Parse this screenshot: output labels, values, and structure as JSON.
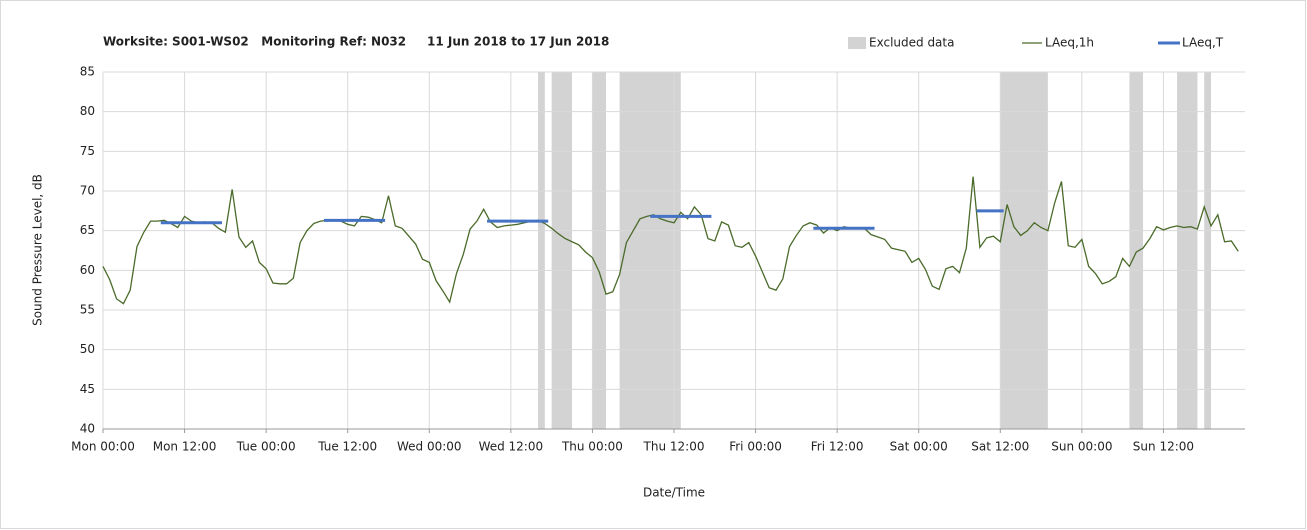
{
  "chart_data": {
    "type": "line",
    "title": "Worksite: S001-WS02   Monitoring Ref: N032     11 Jun 2018 to 17 Jun 2018",
    "x_label": "Date/Time",
    "y_label": "Sound Pressure Level, dB",
    "xlim": [
      0,
      168
    ],
    "ylim": [
      40,
      85
    ],
    "yticks": [
      40,
      45,
      50,
      55,
      60,
      65,
      70,
      75,
      80,
      85
    ],
    "xticks": [
      {
        "value": 0,
        "label": "Mon 00:00"
      },
      {
        "value": 12,
        "label": "Mon 12:00"
      },
      {
        "value": 24,
        "label": "Tue 00:00"
      },
      {
        "value": 36,
        "label": "Tue 12:00"
      },
      {
        "value": 48,
        "label": "Wed 00:00"
      },
      {
        "value": 60,
        "label": "Wed 12:00"
      },
      {
        "value": 72,
        "label": "Thu 00:00"
      },
      {
        "value": 84,
        "label": "Thu 12:00"
      },
      {
        "value": 96,
        "label": "Fri 00:00"
      },
      {
        "value": 108,
        "label": "Fri 12:00"
      },
      {
        "value": 120,
        "label": "Sat 00:00"
      },
      {
        "value": 132,
        "label": "Sat 12:00"
      },
      {
        "value": 144,
        "label": "Sun 00:00"
      },
      {
        "value": 156,
        "label": "Sun 12:00"
      }
    ],
    "grid": true,
    "legend": "top-right",
    "excluded": {
      "name": "Excluded data",
      "color": "#d3d3d3",
      "ranges": [
        [
          64,
          65
        ],
        [
          66,
          69
        ],
        [
          72,
          74
        ],
        [
          76,
          85
        ],
        [
          132,
          139
        ],
        [
          151,
          153
        ],
        [
          158,
          161
        ],
        [
          162,
          163
        ]
      ]
    },
    "series": [
      {
        "name": "LAeq,1h",
        "color": "#4a6b2a",
        "x": [
          0,
          1,
          2,
          3,
          4,
          5,
          6,
          7,
          8,
          9,
          10,
          11,
          12,
          13,
          14,
          15,
          16,
          17,
          18,
          19,
          20,
          21,
          22,
          23,
          24,
          25,
          26,
          27,
          28,
          29,
          30,
          31,
          32,
          33,
          34,
          35,
          36,
          37,
          38,
          39,
          40,
          41,
          42,
          43,
          44,
          45,
          46,
          47,
          48,
          49,
          50,
          51,
          52,
          53,
          54,
          55,
          56,
          57,
          58,
          59,
          60,
          61,
          62,
          63,
          64,
          65,
          66,
          67,
          68,
          69,
          70,
          71,
          72,
          73,
          74,
          75,
          76,
          77,
          78,
          79,
          80,
          81,
          82,
          83,
          84,
          85,
          86,
          87,
          88,
          89,
          90,
          91,
          92,
          93,
          94,
          95,
          96,
          97,
          98,
          99,
          100,
          101,
          102,
          103,
          104,
          105,
          106,
          107,
          108,
          109,
          110,
          111,
          112,
          113,
          114,
          115,
          116,
          117,
          118,
          119,
          120,
          121,
          122,
          123,
          124,
          125,
          126,
          127,
          128,
          129,
          130,
          131,
          132,
          133,
          134,
          135,
          136,
          137,
          138,
          139,
          140,
          141,
          142,
          143,
          144,
          145,
          146,
          147,
          148,
          149,
          150,
          151,
          152,
          153,
          154,
          155,
          156,
          157,
          158,
          159,
          160,
          161,
          162,
          163,
          164,
          165,
          166,
          167
        ],
        "values": [
          60.5,
          58.8,
          56.4,
          55.8,
          57.5,
          63,
          64.8,
          66.2,
          66.2,
          66.3,
          65.9,
          65.4,
          66.8,
          66.2,
          66,
          66.1,
          66,
          65.3,
          64.8,
          70.2,
          64.2,
          62.9,
          63.7,
          61,
          60.2,
          58.4,
          58.3,
          58.3,
          59,
          63.5,
          65,
          65.9,
          66.2,
          66.3,
          66.3,
          66.2,
          65.8,
          65.6,
          66.8,
          66.7,
          66.4,
          66,
          69.4,
          65.6,
          65.3,
          64.3,
          63.3,
          61.4,
          61,
          58.7,
          57.4,
          56,
          59.6,
          62,
          65.2,
          66.2,
          67.7,
          66.1,
          65.4,
          65.6,
          65.7,
          65.8,
          66,
          66.2,
          66.3,
          65.9,
          65.3,
          64.6,
          64,
          63.6,
          63.2,
          62.3,
          61.6,
          59.8,
          57,
          57.3,
          59.5,
          63.5,
          65,
          66.5,
          66.8,
          67,
          66.5,
          66.2,
          66,
          67.3,
          66.5,
          68,
          67,
          64,
          63.7,
          66.1,
          65.7,
          63.1,
          62.9,
          63.5,
          61.8,
          59.8,
          57.8,
          57.5,
          58.9,
          63,
          64.4,
          65.6,
          66,
          65.7,
          64.7,
          65.4,
          65,
          65.5,
          65.3,
          65.3,
          65.3,
          64.5,
          64.2,
          63.9,
          62.8,
          62.6,
          62.4,
          61,
          61.5,
          60.1,
          58,
          57.6,
          60.2,
          60.5,
          59.7,
          62.8,
          71.8,
          62.9,
          64.1,
          64.3,
          63.6,
          68.3,
          65.5,
          64.4,
          65,
          66,
          65.4,
          65,
          68.5,
          71.2,
          63.1,
          62.9,
          63.9,
          60.5,
          59.6,
          58.3,
          58.6,
          59.2,
          61.5,
          60.5,
          62.3,
          62.8,
          64,
          65.5,
          65.1,
          65.4,
          65.6,
          65.4,
          65.5,
          65.2,
          68,
          65.6,
          67,
          63.6,
          63.7,
          62.4
        ]
      },
      {
        "name": "LAeq,T",
        "color": "#4472c4",
        "segments": [
          {
            "x": [
              8.5,
              17.5
            ],
            "value": 66
          },
          {
            "x": [
              32.5,
              41.5
            ],
            "value": 66.3
          },
          {
            "x": [
              56.5,
              65.5
            ],
            "value": 66.2
          },
          {
            "x": [
              80.5,
              89.5
            ],
            "value": 66.8
          },
          {
            "x": [
              104.5,
              113.5
            ],
            "value": 65.3
          },
          {
            "x": [
              128.5,
              132.5
            ],
            "value": 67.5
          }
        ]
      }
    ]
  }
}
